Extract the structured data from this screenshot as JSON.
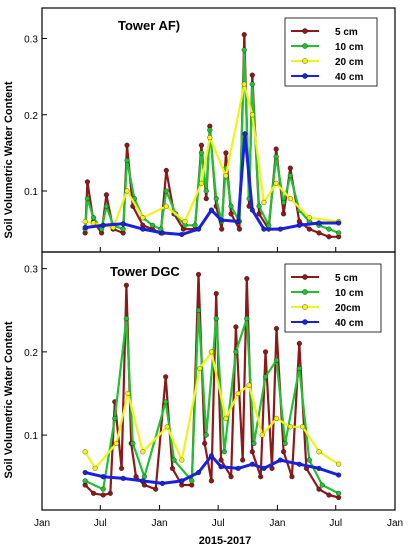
{
  "figure": {
    "ylabel": "Soil Volumetric Water Content",
    "xlabel": "2015-2017",
    "x_ticks": [
      "Jan",
      "Jul",
      "Jan",
      "Jul",
      "Jan",
      "Jul",
      "Jan"
    ],
    "x_tick_dates": [
      "2015-01-01",
      "2015-07-01",
      "2016-01-01",
      "2016-07-01",
      "2017-01-01",
      "2017-07-01",
      "2018-01-01"
    ]
  },
  "chart_data": [
    {
      "type": "line",
      "title": "Tower AF)",
      "xlim": [
        "2015-01-01",
        "2018-01-01"
      ],
      "ylim": [
        0.02,
        0.34
      ],
      "y_ticks": [
        0.1,
        0.2,
        0.3
      ],
      "y_tick_labels": [
        "0.1",
        "0.2",
        "0.3"
      ],
      "legend_position": "top-right",
      "series": [
        {
          "name": "5 cm",
          "color": "#8b1a1a",
          "marker": "circle",
          "points": [
            [
              "2015-05-15",
              0.045
            ],
            [
              "2015-05-22",
              0.112
            ],
            [
              "2015-06-10",
              0.06
            ],
            [
              "2015-07-05",
              0.045
            ],
            [
              "2015-07-20",
              0.095
            ],
            [
              "2015-08-10",
              0.05
            ],
            [
              "2015-09-10",
              0.045
            ],
            [
              "2015-09-22",
              0.16
            ],
            [
              "2015-10-10",
              0.08
            ],
            [
              "2015-11-10",
              0.055
            ],
            [
              "2015-12-10",
              0.05
            ],
            [
              "2016-01-05",
              0.045
            ],
            [
              "2016-01-22",
              0.127
            ],
            [
              "2016-02-15",
              0.07
            ],
            [
              "2016-03-15",
              0.05
            ],
            [
              "2016-04-20",
              0.05
            ],
            [
              "2016-05-10",
              0.16
            ],
            [
              "2016-05-25",
              0.09
            ],
            [
              "2016-06-05",
              0.185
            ],
            [
              "2016-06-25",
              0.08
            ],
            [
              "2016-07-12",
              0.05
            ],
            [
              "2016-07-25",
              0.15
            ],
            [
              "2016-08-10",
              0.07
            ],
            [
              "2016-09-05",
              0.05
            ],
            [
              "2016-09-20",
              0.305
            ],
            [
              "2016-10-05",
              0.08
            ],
            [
              "2016-10-15",
              0.252
            ],
            [
              "2016-11-05",
              0.07
            ],
            [
              "2016-12-05",
              0.05
            ],
            [
              "2016-12-28",
              0.155
            ],
            [
              "2017-01-20",
              0.07
            ],
            [
              "2017-02-10",
              0.13
            ],
            [
              "2017-03-10",
              0.06
            ],
            [
              "2017-04-10",
              0.05
            ],
            [
              "2017-05-10",
              0.045
            ],
            [
              "2017-06-10",
              0.04
            ],
            [
              "2017-07-10",
              0.04
            ]
          ]
        },
        {
          "name": "10 cm",
          "color": "#22c033",
          "marker": "circle",
          "points": [
            [
              "2015-05-15",
              0.05
            ],
            [
              "2015-05-22",
              0.09
            ],
            [
              "2015-06-10",
              0.065
            ],
            [
              "2015-07-05",
              0.05
            ],
            [
              "2015-07-20",
              0.08
            ],
            [
              "2015-08-10",
              0.055
            ],
            [
              "2015-09-10",
              0.05
            ],
            [
              "2015-09-22",
              0.14
            ],
            [
              "2015-10-15",
              0.09
            ],
            [
              "2015-11-10",
              0.065
            ],
            [
              "2015-12-10",
              0.055
            ],
            [
              "2016-01-05",
              0.05
            ],
            [
              "2016-01-22",
              0.1
            ],
            [
              "2016-02-20",
              0.07
            ],
            [
              "2016-03-20",
              0.055
            ],
            [
              "2016-04-20",
              0.055
            ],
            [
              "2016-05-10",
              0.15
            ],
            [
              "2016-05-25",
              0.1
            ],
            [
              "2016-06-05",
              0.18
            ],
            [
              "2016-06-25",
              0.09
            ],
            [
              "2016-07-12",
              0.06
            ],
            [
              "2016-07-25",
              0.13
            ],
            [
              "2016-08-10",
              0.08
            ],
            [
              "2016-09-05",
              0.06
            ],
            [
              "2016-09-20",
              0.285
            ],
            [
              "2016-10-05",
              0.09
            ],
            [
              "2016-10-15",
              0.24
            ],
            [
              "2016-11-05",
              0.08
            ],
            [
              "2016-12-05",
              0.055
            ],
            [
              "2016-12-28",
              0.145
            ],
            [
              "2017-01-20",
              0.085
            ],
            [
              "2017-02-10",
              0.12
            ],
            [
              "2017-03-10",
              0.075
            ],
            [
              "2017-04-10",
              0.06
            ],
            [
              "2017-05-10",
              0.055
            ],
            [
              "2017-06-10",
              0.05
            ],
            [
              "2017-07-10",
              0.045
            ]
          ]
        },
        {
          "name": "20 cm",
          "color": "#f2f218",
          "marker": "circle",
          "points": [
            [
              "2015-05-15",
              0.06
            ],
            [
              "2015-06-10",
              0.058
            ],
            [
              "2015-07-10",
              0.055
            ],
            [
              "2015-08-10",
              0.052
            ],
            [
              "2015-09-22",
              0.1
            ],
            [
              "2015-11-10",
              0.065
            ],
            [
              "2016-01-22",
              0.08
            ],
            [
              "2016-03-20",
              0.06
            ],
            [
              "2016-05-10",
              0.11
            ],
            [
              "2016-06-05",
              0.17
            ],
            [
              "2016-07-25",
              0.12
            ],
            [
              "2016-09-20",
              0.24
            ],
            [
              "2016-10-15",
              0.2
            ],
            [
              "2016-11-20",
              0.085
            ],
            [
              "2016-12-28",
              0.11
            ],
            [
              "2017-02-10",
              0.09
            ],
            [
              "2017-04-10",
              0.065
            ],
            [
              "2017-07-10",
              0.06
            ]
          ]
        },
        {
          "name": "40 cm",
          "color": "#1a22dd",
          "marker": "circle",
          "points": [
            [
              "2015-05-15",
              0.052
            ],
            [
              "2015-07-10",
              0.055
            ],
            [
              "2015-09-10",
              0.057
            ],
            [
              "2015-11-10",
              0.05
            ],
            [
              "2016-01-10",
              0.045
            ],
            [
              "2016-03-10",
              0.043
            ],
            [
              "2016-05-01",
              0.05
            ],
            [
              "2016-06-10",
              0.075
            ],
            [
              "2016-07-10",
              0.062
            ],
            [
              "2016-09-01",
              0.06
            ],
            [
              "2016-09-22",
              0.175
            ],
            [
              "2016-10-15",
              0.075
            ],
            [
              "2016-11-20",
              0.05
            ],
            [
              "2017-01-10",
              0.05
            ],
            [
              "2017-03-10",
              0.055
            ],
            [
              "2017-05-10",
              0.058
            ],
            [
              "2017-07-10",
              0.058
            ]
          ]
        }
      ]
    },
    {
      "type": "line",
      "title": "Tower DGC",
      "xlim": [
        "2015-01-01",
        "2018-01-01"
      ],
      "ylim": [
        0.01,
        0.32
      ],
      "y_ticks": [
        0.1,
        0.2,
        0.3
      ],
      "y_tick_labels": [
        "0.1",
        "0.2",
        "0.3"
      ],
      "legend_position": "top-right",
      "series": [
        {
          "name": "5 cm",
          "color": "#8b1a1a",
          "marker": "circle",
          "points": [
            [
              "2015-05-15",
              0.04
            ],
            [
              "2015-06-10",
              0.03
            ],
            [
              "2015-07-10",
              0.028
            ],
            [
              "2015-08-01",
              0.03
            ],
            [
              "2015-08-15",
              0.14
            ],
            [
              "2015-09-05",
              0.06
            ],
            [
              "2015-09-20",
              0.28
            ],
            [
              "2015-10-05",
              0.09
            ],
            [
              "2015-10-20",
              0.05
            ],
            [
              "2015-11-15",
              0.04
            ],
            [
              "2015-12-20",
              0.035
            ],
            [
              "2016-01-20",
              0.17
            ],
            [
              "2016-02-10",
              0.06
            ],
            [
              "2016-03-10",
              0.04
            ],
            [
              "2016-04-10",
              0.04
            ],
            [
              "2016-05-01",
              0.293
            ],
            [
              "2016-05-20",
              0.09
            ],
            [
              "2016-06-10",
              0.045
            ],
            [
              "2016-06-25",
              0.27
            ],
            [
              "2016-07-10",
              0.07
            ],
            [
              "2016-08-10",
              0.05
            ],
            [
              "2016-08-25",
              0.23
            ],
            [
              "2016-09-15",
              0.07
            ],
            [
              "2016-09-28",
              0.288
            ],
            [
              "2016-10-15",
              0.08
            ],
            [
              "2016-11-10",
              0.05
            ],
            [
              "2016-11-25",
              0.2
            ],
            [
              "2016-12-15",
              0.06
            ],
            [
              "2016-12-29",
              0.228
            ],
            [
              "2017-01-20",
              0.08
            ],
            [
              "2017-02-15",
              0.05
            ],
            [
              "2017-03-10",
              0.21
            ],
            [
              "2017-04-01",
              0.06
            ],
            [
              "2017-05-10",
              0.035
            ],
            [
              "2017-06-10",
              0.028
            ],
            [
              "2017-07-10",
              0.025
            ]
          ]
        },
        {
          "name": "10 cm",
          "color": "#22c033",
          "marker": "circle",
          "points": [
            [
              "2015-05-15",
              0.045
            ],
            [
              "2015-07-10",
              0.035
            ],
            [
              "2015-08-15",
              0.12
            ],
            [
              "2015-09-20",
              0.24
            ],
            [
              "2015-10-10",
              0.09
            ],
            [
              "2015-11-15",
              0.05
            ],
            [
              "2016-01-20",
              0.14
            ],
            [
              "2016-02-15",
              0.07
            ],
            [
              "2016-04-10",
              0.045
            ],
            [
              "2016-05-01",
              0.25
            ],
            [
              "2016-05-25",
              0.1
            ],
            [
              "2016-06-25",
              0.24
            ],
            [
              "2016-07-20",
              0.08
            ],
            [
              "2016-08-25",
              0.2
            ],
            [
              "2016-09-28",
              0.24
            ],
            [
              "2016-10-20",
              0.09
            ],
            [
              "2016-11-25",
              0.17
            ],
            [
              "2016-12-29",
              0.19
            ],
            [
              "2017-01-25",
              0.09
            ],
            [
              "2017-03-10",
              0.18
            ],
            [
              "2017-04-10",
              0.07
            ],
            [
              "2017-05-20",
              0.04
            ],
            [
              "2017-07-10",
              0.03
            ]
          ]
        },
        {
          "name": "20cm",
          "color": "#f2f218",
          "marker": "circle",
          "points": [
            [
              "2015-05-15",
              0.08
            ],
            [
              "2015-06-15",
              0.06
            ],
            [
              "2015-08-20",
              0.09
            ],
            [
              "2015-09-25",
              0.15
            ],
            [
              "2015-11-10",
              0.08
            ],
            [
              "2016-01-25",
              0.11
            ],
            [
              "2016-03-10",
              0.07
            ],
            [
              "2016-05-05",
              0.18
            ],
            [
              "2016-06-10",
              0.2
            ],
            [
              "2016-07-25",
              0.12
            ],
            [
              "2016-09-01",
              0.15
            ],
            [
              "2016-10-05",
              0.16
            ],
            [
              "2016-11-15",
              0.1
            ],
            [
              "2016-12-29",
              0.12
            ],
            [
              "2017-02-10",
              0.11
            ],
            [
              "2017-03-20",
              0.11
            ],
            [
              "2017-05-10",
              0.08
            ],
            [
              "2017-07-10",
              0.065
            ]
          ]
        },
        {
          "name": "40 cm",
          "color": "#1a22dd",
          "marker": "circle",
          "points": [
            [
              "2015-05-15",
              0.055
            ],
            [
              "2015-07-10",
              0.05
            ],
            [
              "2015-09-10",
              0.048
            ],
            [
              "2015-11-10",
              0.045
            ],
            [
              "2016-01-10",
              0.042
            ],
            [
              "2016-03-10",
              0.045
            ],
            [
              "2016-05-01",
              0.055
            ],
            [
              "2016-06-10",
              0.075
            ],
            [
              "2016-07-10",
              0.062
            ],
            [
              "2016-09-01",
              0.06
            ],
            [
              "2016-10-15",
              0.065
            ],
            [
              "2016-11-20",
              0.06
            ],
            [
              "2017-01-10",
              0.07
            ],
            [
              "2017-03-10",
              0.065
            ],
            [
              "2017-05-10",
              0.06
            ],
            [
              "2017-07-10",
              0.052
            ]
          ]
        }
      ]
    }
  ]
}
